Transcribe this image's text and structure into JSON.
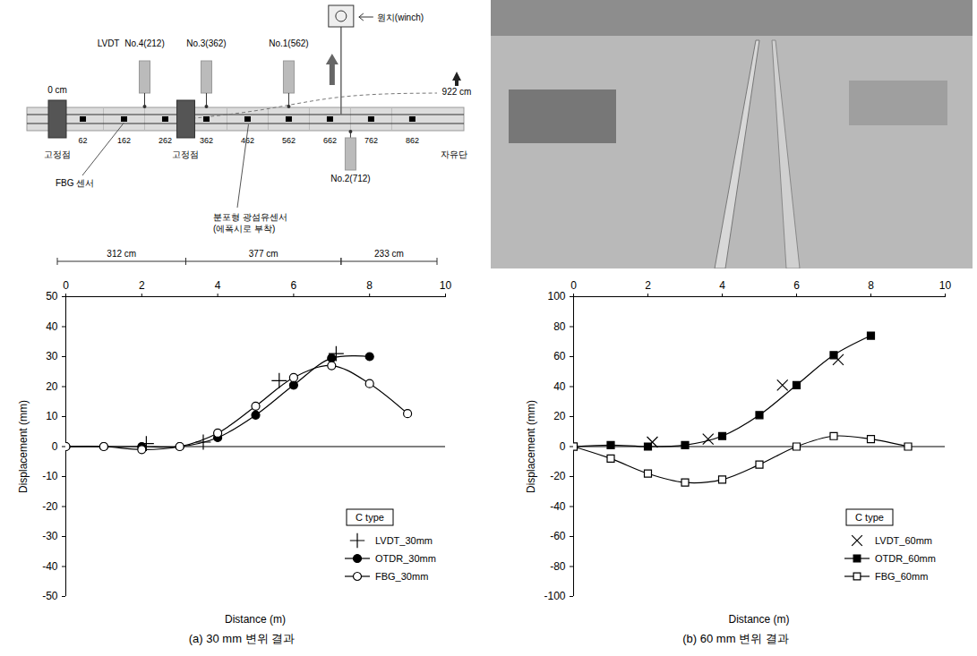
{
  "diagram": {
    "winch": {
      "label": "원치(winch)",
      "position_cm": 689
    },
    "lvdt_label": "LVDT",
    "lvdts": [
      {
        "label": "No.4(212)",
        "position_cm": 212,
        "side": "top"
      },
      {
        "label": "No.3(362)",
        "position_cm": 362,
        "side": "top"
      },
      {
        "label": "No.1(562)",
        "position_cm": 562,
        "side": "top"
      },
      {
        "label": "No.2(712)",
        "position_cm": 712,
        "side": "bottom"
      }
    ],
    "start_label": "0 cm",
    "end_label": "922 cm",
    "beam_length_cm": 922,
    "fixed_points": [
      {
        "label": "고정점",
        "position_cm": 0
      },
      {
        "label": "고정점",
        "position_cm": 312
      }
    ],
    "free_end_label": "자유단",
    "fbg_positions_cm": [
      62,
      162,
      262,
      362,
      462,
      562,
      662,
      762,
      862
    ],
    "fbg_label": "FBG 센서",
    "fiber_label": [
      "분포형 광섬유센서",
      "(에폭시로 부착)"
    ],
    "dimensions": [
      {
        "label": "312 cm",
        "from_cm": 0,
        "to_cm": 312
      },
      {
        "label": "377 cm",
        "from_cm": 312,
        "to_cm": 689
      },
      {
        "label": "233 cm",
        "from_cm": 689,
        "to_cm": 922
      }
    ]
  },
  "chart_data": [
    {
      "type": "line",
      "caption": "(a) 30 mm 변위 결과",
      "xlabel": "Distance (m)",
      "ylabel": "Displacement (mm)",
      "xlim": [
        0,
        10
      ],
      "xticks": [
        0,
        2,
        4,
        6,
        8,
        10
      ],
      "ylim": [
        -50,
        50
      ],
      "yticks": [
        -50,
        -40,
        -30,
        -20,
        -10,
        0,
        10,
        20,
        30,
        40,
        50
      ],
      "grid": false,
      "legend": "lower right",
      "legend_title": "C type",
      "series": [
        {
          "name": "LVDT_30mm",
          "type": "scatter",
          "marker": "plus",
          "color": "#000000",
          "x": [
            2.12,
            3.62,
            5.62,
            7.12
          ],
          "values": [
            1,
            1.5,
            22,
            31
          ]
        },
        {
          "name": "OTDR_30mm",
          "type": "line",
          "marker": "filled-circle",
          "color": "#000000",
          "x": [
            0,
            1,
            2,
            3,
            4,
            5,
            6,
            7,
            8
          ],
          "values": [
            0,
            0,
            0,
            0,
            3,
            10.5,
            20.5,
            29.5,
            30
          ]
        },
        {
          "name": "FBG_30mm",
          "type": "line",
          "marker": "open-circle",
          "color": "#000000",
          "x": [
            0,
            1,
            2,
            3,
            4,
            5,
            6,
            7,
            8,
            9
          ],
          "values": [
            0,
            0,
            -1,
            0,
            4.5,
            13.5,
            23,
            27,
            21,
            11
          ]
        }
      ]
    },
    {
      "type": "line",
      "caption": "(b) 60 mm 변위 결과",
      "xlabel": "Distance (m)",
      "ylabel": "Displacement (mm)",
      "xlim": [
        0,
        10
      ],
      "xticks": [
        0,
        2,
        4,
        6,
        8,
        10
      ],
      "ylim": [
        -100,
        100
      ],
      "yticks": [
        -100,
        -80,
        -60,
        -40,
        -20,
        0,
        20,
        40,
        60,
        80,
        100
      ],
      "grid": false,
      "legend": "lower right",
      "legend_title": "C type",
      "series": [
        {
          "name": "LVDT_60mm",
          "type": "scatter",
          "marker": "cross",
          "color": "#000000",
          "x": [
            2.12,
            3.62,
            5.62,
            7.12
          ],
          "values": [
            3,
            5,
            41,
            58
          ]
        },
        {
          "name": "OTDR_60mm",
          "type": "line",
          "marker": "filled-square",
          "color": "#000000",
          "x": [
            0,
            1,
            2,
            3,
            4,
            5,
            6,
            7,
            8
          ],
          "values": [
            0,
            1,
            0,
            1,
            7,
            21,
            41,
            61,
            74
          ]
        },
        {
          "name": "FBG_60mm",
          "type": "line",
          "marker": "open-square",
          "color": "#000000",
          "x": [
            0,
            1,
            2,
            3,
            4,
            5,
            6,
            7,
            8,
            9
          ],
          "values": [
            0,
            -8,
            -18,
            -24,
            -22,
            -12,
            0,
            7,
            5,
            0
          ]
        }
      ]
    }
  ]
}
